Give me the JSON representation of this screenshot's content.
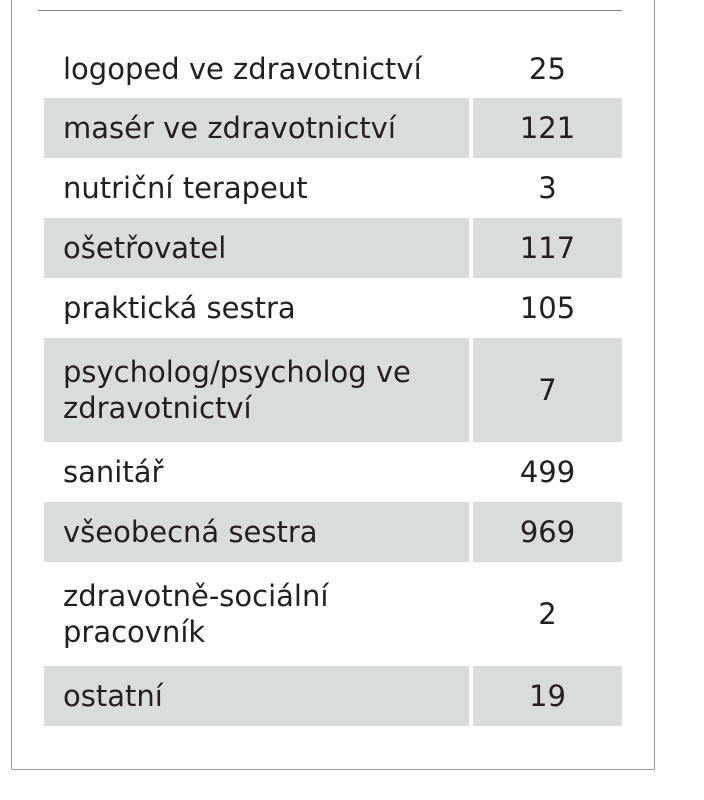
{
  "table": {
    "rows": [
      {
        "profession": "logoped ve zdravotnictví",
        "count": "25"
      },
      {
        "profession": "masér ve zdravotnictví",
        "count": "121"
      },
      {
        "profession": "nutriční terapeut",
        "count": "3"
      },
      {
        "profession": "ošetřovatel",
        "count": "117"
      },
      {
        "profession": "praktická sestra",
        "count": "105"
      },
      {
        "profession": "psycholog/psycholog ve zdravotnictví",
        "count": "7"
      },
      {
        "profession": "sanitář",
        "count": "499"
      },
      {
        "profession": "všeobecná sestra",
        "count": "969"
      },
      {
        "profession": "zdravotně-sociální pracovník",
        "count": "2"
      },
      {
        "profession": "ostatní",
        "count": "19"
      }
    ]
  },
  "colors": {
    "shaded_row": "#d9dcdc",
    "text": "#231f20",
    "border": "#9a9a9a"
  }
}
